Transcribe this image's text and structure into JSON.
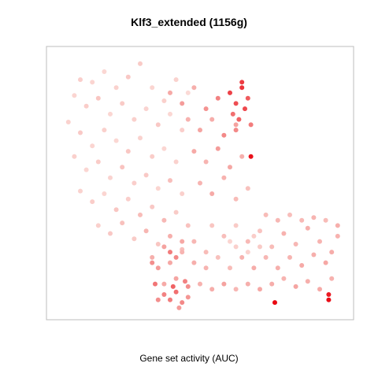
{
  "chart_data": {
    "type": "scatter",
    "title": "Klf3_extended (1156g)",
    "xlabel": "Gene set activity (AUC)",
    "ylabel": "",
    "grid": false,
    "axes_ticks": false,
    "legend": "none",
    "colors": {
      "low": "#fce1dd",
      "mid": "#f5a3a0",
      "high": "#e8000b"
    },
    "points": [
      [
        0.1,
        0.89,
        0.15
      ],
      [
        0.14,
        0.88,
        0.1
      ],
      [
        0.18,
        0.92,
        0.08
      ],
      [
        0.22,
        0.86,
        0.12
      ],
      [
        0.26,
        0.9,
        0.2
      ],
      [
        0.3,
        0.95,
        0.18
      ],
      [
        0.34,
        0.86,
        0.1
      ],
      [
        0.38,
        0.81,
        0.14
      ],
      [
        0.42,
        0.89,
        0.12
      ],
      [
        0.46,
        0.84,
        0.06
      ],
      [
        0.08,
        0.83,
        0.1
      ],
      [
        0.12,
        0.79,
        0.16
      ],
      [
        0.16,
        0.82,
        0.22
      ],
      [
        0.2,
        0.76,
        0.09
      ],
      [
        0.24,
        0.8,
        0.18
      ],
      [
        0.28,
        0.74,
        0.14
      ],
      [
        0.32,
        0.78,
        0.11
      ],
      [
        0.36,
        0.72,
        0.2
      ],
      [
        0.4,
        0.76,
        0.08
      ],
      [
        0.44,
        0.7,
        0.15
      ],
      [
        0.06,
        0.73,
        0.12
      ],
      [
        0.1,
        0.69,
        0.19
      ],
      [
        0.14,
        0.64,
        0.1
      ],
      [
        0.18,
        0.7,
        0.14
      ],
      [
        0.22,
        0.66,
        0.08
      ],
      [
        0.26,
        0.62,
        0.21
      ],
      [
        0.3,
        0.67,
        0.12
      ],
      [
        0.34,
        0.6,
        0.16
      ],
      [
        0.38,
        0.63,
        0.09
      ],
      [
        0.42,
        0.58,
        0.13
      ],
      [
        0.08,
        0.6,
        0.14
      ],
      [
        0.12,
        0.55,
        0.09
      ],
      [
        0.16,
        0.58,
        0.17
      ],
      [
        0.2,
        0.52,
        0.11
      ],
      [
        0.24,
        0.56,
        0.24
      ],
      [
        0.28,
        0.5,
        0.15
      ],
      [
        0.32,
        0.53,
        0.19
      ],
      [
        0.36,
        0.48,
        0.1
      ],
      [
        0.4,
        0.51,
        0.28
      ],
      [
        0.44,
        0.46,
        0.14
      ],
      [
        0.1,
        0.47,
        0.12
      ],
      [
        0.14,
        0.43,
        0.16
      ],
      [
        0.18,
        0.46,
        0.1
      ],
      [
        0.22,
        0.4,
        0.22
      ],
      [
        0.26,
        0.44,
        0.15
      ],
      [
        0.3,
        0.38,
        0.3
      ],
      [
        0.34,
        0.41,
        0.2
      ],
      [
        0.38,
        0.36,
        0.33
      ],
      [
        0.42,
        0.39,
        0.18
      ],
      [
        0.46,
        0.34,
        0.25
      ],
      [
        0.16,
        0.34,
        0.14
      ],
      [
        0.2,
        0.31,
        0.2
      ],
      [
        0.24,
        0.35,
        0.26
      ],
      [
        0.28,
        0.29,
        0.18
      ],
      [
        0.32,
        0.32,
        0.35
      ],
      [
        0.36,
        0.27,
        0.22
      ],
      [
        0.4,
        0.3,
        0.4
      ],
      [
        0.44,
        0.25,
        0.28
      ],
      [
        0.48,
        0.28,
        0.34
      ],
      [
        0.52,
        0.24,
        0.3
      ],
      [
        0.4,
        0.84,
        0.45
      ],
      [
        0.44,
        0.8,
        0.52
      ],
      [
        0.48,
        0.86,
        0.4
      ],
      [
        0.52,
        0.78,
        0.55
      ],
      [
        0.56,
        0.82,
        0.6
      ],
      [
        0.46,
        0.74,
        0.38
      ],
      [
        0.5,
        0.7,
        0.48
      ],
      [
        0.54,
        0.74,
        0.42
      ],
      [
        0.58,
        0.68,
        0.58
      ],
      [
        0.62,
        0.72,
        0.5
      ],
      [
        0.48,
        0.62,
        0.44
      ],
      [
        0.52,
        0.58,
        0.36
      ],
      [
        0.56,
        0.63,
        0.52
      ],
      [
        0.6,
        0.56,
        0.47
      ],
      [
        0.64,
        0.6,
        0.4
      ],
      [
        0.5,
        0.5,
        0.36
      ],
      [
        0.54,
        0.46,
        0.44
      ],
      [
        0.58,
        0.52,
        0.38
      ],
      [
        0.62,
        0.44,
        0.3
      ],
      [
        0.66,
        0.48,
        0.26
      ],
      [
        0.6,
        0.84,
        0.8
      ],
      [
        0.62,
        0.8,
        0.76
      ],
      [
        0.64,
        0.86,
        0.84
      ],
      [
        0.66,
        0.82,
        0.72
      ],
      [
        0.61,
        0.76,
        0.66
      ],
      [
        0.63,
        0.74,
        0.7
      ],
      [
        0.65,
        0.78,
        0.78
      ],
      [
        0.67,
        0.72,
        0.62
      ],
      [
        0.62,
        0.7,
        0.58
      ],
      [
        0.64,
        0.88,
        0.82
      ],
      [
        0.67,
        0.6,
        0.95
      ],
      [
        0.54,
        0.34,
        0.22
      ],
      [
        0.58,
        0.3,
        0.28
      ],
      [
        0.62,
        0.34,
        0.18
      ],
      [
        0.66,
        0.28,
        0.32
      ],
      [
        0.7,
        0.32,
        0.24
      ],
      [
        0.74,
        0.26,
        0.3
      ],
      [
        0.78,
        0.31,
        0.38
      ],
      [
        0.82,
        0.27,
        0.34
      ],
      [
        0.86,
        0.33,
        0.4
      ],
      [
        0.9,
        0.28,
        0.36
      ],
      [
        0.94,
        0.24,
        0.42
      ],
      [
        0.96,
        0.3,
        0.38
      ],
      [
        0.92,
        0.2,
        0.46
      ],
      [
        0.88,
        0.23,
        0.4
      ],
      [
        0.84,
        0.19,
        0.44
      ],
      [
        0.8,
        0.22,
        0.36
      ],
      [
        0.76,
        0.18,
        0.4
      ],
      [
        0.72,
        0.22,
        0.34
      ],
      [
        0.68,
        0.18,
        0.42
      ],
      [
        0.64,
        0.22,
        0.38
      ],
      [
        0.6,
        0.18,
        0.3
      ],
      [
        0.56,
        0.22,
        0.26
      ],
      [
        0.52,
        0.18,
        0.36
      ],
      [
        0.48,
        0.2,
        0.4
      ],
      [
        0.72,
        0.38,
        0.3
      ],
      [
        0.76,
        0.36,
        0.34
      ],
      [
        0.8,
        0.38,
        0.28
      ],
      [
        0.84,
        0.36,
        0.32
      ],
      [
        0.88,
        0.37,
        0.36
      ],
      [
        0.92,
        0.36,
        0.3
      ],
      [
        0.96,
        0.34,
        0.4
      ],
      [
        0.74,
        0.12,
        0.42
      ],
      [
        0.78,
        0.14,
        0.36
      ],
      [
        0.82,
        0.11,
        0.48
      ],
      [
        0.86,
        0.13,
        0.4
      ],
      [
        0.9,
        0.1,
        0.44
      ],
      [
        0.94,
        0.14,
        0.38
      ],
      [
        0.7,
        0.1,
        0.46
      ],
      [
        0.66,
        0.12,
        0.4
      ],
      [
        0.62,
        0.1,
        0.34
      ],
      [
        0.58,
        0.12,
        0.5
      ],
      [
        0.54,
        0.1,
        0.42
      ],
      [
        0.5,
        0.12,
        0.38
      ],
      [
        0.46,
        0.11,
        0.56
      ],
      [
        0.42,
        0.14,
        0.48
      ],
      [
        0.38,
        0.12,
        0.44
      ],
      [
        0.36,
        0.18,
        0.52
      ],
      [
        0.4,
        0.2,
        0.46
      ],
      [
        0.34,
        0.22,
        0.4
      ],
      [
        0.44,
        0.24,
        0.36
      ],
      [
        0.4,
        0.06,
        0.62
      ],
      [
        0.44,
        0.05,
        0.58
      ],
      [
        0.42,
        0.09,
        0.66
      ],
      [
        0.46,
        0.07,
        0.54
      ],
      [
        0.38,
        0.08,
        0.6
      ],
      [
        0.35,
        0.12,
        0.64
      ],
      [
        0.36,
        0.06,
        0.56
      ],
      [
        0.43,
        0.03,
        0.52
      ],
      [
        0.41,
        0.11,
        0.7
      ],
      [
        0.45,
        0.13,
        0.6
      ],
      [
        0.34,
        0.2,
        0.56
      ],
      [
        0.38,
        0.26,
        0.5
      ],
      [
        0.42,
        0.22,
        0.58
      ],
      [
        0.44,
        0.28,
        0.46
      ],
      [
        0.4,
        0.24,
        0.62
      ],
      [
        0.75,
        0.05,
        0.98
      ],
      [
        0.93,
        0.08,
        0.92
      ],
      [
        0.93,
        0.06,
        0.96
      ],
      [
        0.62,
        0.26,
        0.14
      ],
      [
        0.66,
        0.24,
        0.12
      ],
      [
        0.7,
        0.26,
        0.18
      ],
      [
        0.6,
        0.28,
        0.1
      ],
      [
        0.68,
        0.3,
        0.16
      ]
    ]
  }
}
